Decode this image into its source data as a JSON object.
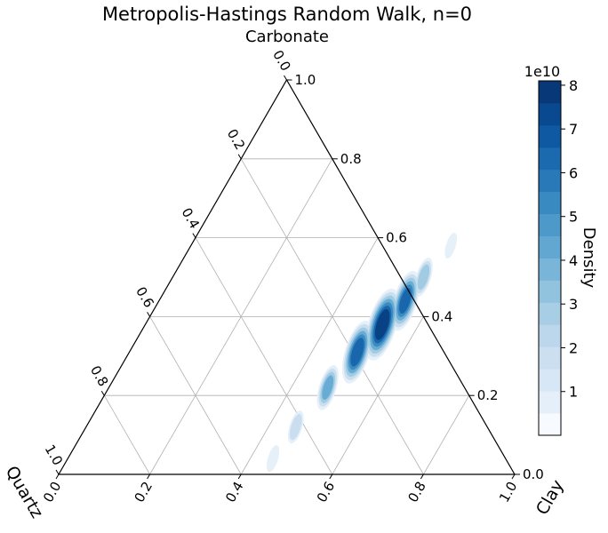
{
  "chart_data": {
    "type": "ternary-density",
    "title": "Metropolis-Hastings Random Walk, n=0",
    "axes": {
      "top": "Carbonate",
      "left": "Quartz",
      "right": "Clay"
    },
    "ticks": [
      "0.0",
      "0.2",
      "0.4",
      "0.6",
      "0.8",
      "1.0"
    ],
    "tick_values": [
      0,
      0.2,
      0.4,
      0.6,
      0.8,
      1.0
    ],
    "grid": true,
    "colorbar": {
      "label": "Density",
      "offset_text": "1e10",
      "ticks": [
        "1",
        "2",
        "3",
        "4",
        "5",
        "6",
        "7",
        "8"
      ],
      "tick_values": [
        1,
        2,
        3,
        4,
        5,
        6,
        7,
        8
      ],
      "range": [
        0,
        8.1
      ],
      "levels": 16,
      "colormap": "Blues"
    },
    "density_ridge": [
      {
        "clay": 0.57,
        "carbonate": 0.58,
        "density": 0.3
      },
      {
        "clay": 0.55,
        "carbonate": 0.5,
        "density": 2.5
      },
      {
        "clay": 0.54,
        "carbonate": 0.44,
        "density": 6.0
      },
      {
        "clay": 0.52,
        "carbonate": 0.38,
        "density": 8.0
      },
      {
        "clay": 0.5,
        "carbonate": 0.31,
        "density": 6.5
      },
      {
        "clay": 0.48,
        "carbonate": 0.22,
        "density": 3.5
      },
      {
        "clay": 0.46,
        "carbonate": 0.12,
        "density": 1.5
      },
      {
        "clay": 0.45,
        "carbonate": 0.04,
        "density": 0.5
      }
    ]
  }
}
